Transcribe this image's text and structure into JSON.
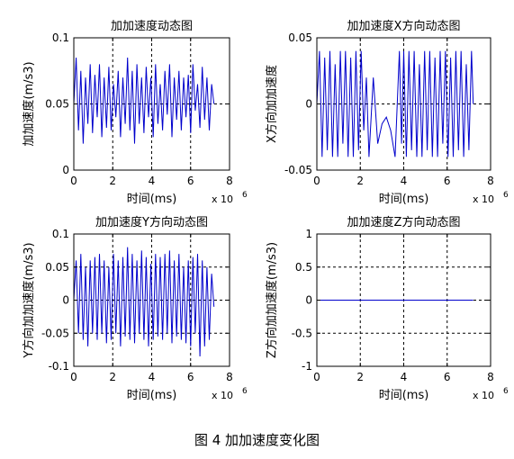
{
  "figure_caption": "图 4  加加速度变化图",
  "chart_data": [
    {
      "type": "line",
      "title": "加加速度动态图",
      "xlabel": "时间(ms)",
      "ylabel": "加加速度(m/s3)",
      "x_exponent": "x 10",
      "x_exponent_power": "6",
      "xlim": [
        0,
        8
      ],
      "ylim": [
        0,
        0.1
      ],
      "xticks": [
        0,
        2,
        4,
        6,
        8
      ],
      "yticks": [
        0,
        0.05,
        0.1
      ],
      "ytick_labels": [
        "0",
        "0.05",
        "0.1"
      ],
      "grid": true,
      "line_color": "#0000cc",
      "x": [
        0,
        0.12,
        0.24,
        0.36,
        0.48,
        0.6,
        0.72,
        0.84,
        0.96,
        1.08,
        1.2,
        1.32,
        1.44,
        1.56,
        1.68,
        1.8,
        1.92,
        2.04,
        2.16,
        2.28,
        2.4,
        2.52,
        2.64,
        2.76,
        2.88,
        3.0,
        3.12,
        3.24,
        3.36,
        3.48,
        3.6,
        3.72,
        3.84,
        3.96,
        4.08,
        4.2,
        4.32,
        4.44,
        4.56,
        4.68,
        4.8,
        4.92,
        5.04,
        5.16,
        5.28,
        5.4,
        5.52,
        5.64,
        5.76,
        5.88,
        6.0,
        6.12,
        6.24,
        6.36,
        6.48,
        6.6,
        6.72,
        6.84,
        6.96,
        7.08,
        7.2
      ],
      "y": [
        0.05,
        0.085,
        0.03,
        0.075,
        0.02,
        0.07,
        0.035,
        0.08,
        0.028,
        0.072,
        0.04,
        0.08,
        0.025,
        0.07,
        0.032,
        0.078,
        0.03,
        0.065,
        0.04,
        0.075,
        0.025,
        0.07,
        0.035,
        0.085,
        0.03,
        0.075,
        0.02,
        0.08,
        0.035,
        0.07,
        0.028,
        0.078,
        0.04,
        0.07,
        0.025,
        0.08,
        0.035,
        0.065,
        0.03,
        0.075,
        0.042,
        0.08,
        0.025,
        0.07,
        0.038,
        0.075,
        0.03,
        0.07,
        0.04,
        0.072,
        0.028,
        0.08,
        0.045,
        0.065,
        0.032,
        0.078,
        0.038,
        0.07,
        0.03,
        0.065,
        0.05
      ]
    },
    {
      "type": "line",
      "title": "加加速度X方向动态图",
      "xlabel": "时间(ms)",
      "ylabel": "X方向加加速度",
      "x_exponent": "x 10",
      "x_exponent_power": "6",
      "xlim": [
        0,
        8
      ],
      "ylim": [
        -0.05,
        0.05
      ],
      "xticks": [
        0,
        2,
        4,
        6,
        8
      ],
      "yticks": [
        -0.05,
        0,
        0.05
      ],
      "ytick_labels": [
        "-0.05",
        "0",
        "0.05"
      ],
      "grid": true,
      "line_color": "#0000cc",
      "x": [
        0,
        0.12,
        0.24,
        0.36,
        0.48,
        0.6,
        0.72,
        0.84,
        0.96,
        1.08,
        1.2,
        1.32,
        1.44,
        1.56,
        1.68,
        1.8,
        1.92,
        2.04,
        2.16,
        2.28,
        2.4,
        2.6,
        2.8,
        3.0,
        3.2,
        3.4,
        3.6,
        3.8,
        3.9,
        4.0,
        4.12,
        4.24,
        4.36,
        4.48,
        4.6,
        4.72,
        4.84,
        4.96,
        5.08,
        5.2,
        5.32,
        5.44,
        5.56,
        5.68,
        5.8,
        5.92,
        6.04,
        6.16,
        6.28,
        6.4,
        6.52,
        6.64,
        6.76,
        6.88,
        7.0,
        7.12,
        7.2
      ],
      "y": [
        0,
        0.04,
        -0.04,
        0.035,
        -0.035,
        0.04,
        -0.04,
        0.03,
        -0.04,
        0.04,
        -0.03,
        0.04,
        -0.04,
        0.035,
        -0.04,
        0.04,
        -0.035,
        0.04,
        -0.02,
        0.02,
        -0.04,
        0.02,
        -0.03,
        -0.015,
        -0.01,
        -0.02,
        -0.04,
        0.04,
        -0.03,
        0.04,
        -0.04,
        0.04,
        -0.035,
        0.04,
        -0.04,
        0.03,
        -0.04,
        0.04,
        -0.035,
        0.04,
        -0.04,
        0.035,
        -0.04,
        0.04,
        -0.03,
        0.04,
        -0.04,
        0.035,
        -0.04,
        0.04,
        -0.035,
        0.04,
        -0.04,
        0.03,
        -0.035,
        0.04,
        0
      ]
    },
    {
      "type": "line",
      "title": "加加速度Y方向动态图",
      "xlabel": "时间(ms)",
      "ylabel": "Y方向加加速度(m/s3)",
      "x_exponent": "x 10",
      "x_exponent_power": "6",
      "xlim": [
        0,
        8
      ],
      "ylim": [
        -0.1,
        0.1
      ],
      "xticks": [
        0,
        2,
        4,
        6,
        8
      ],
      "yticks": [
        -0.1,
        -0.05,
        0,
        0.05,
        0.1
      ],
      "ytick_labels": [
        "-0.1",
        "-0.05",
        "0",
        "0.05",
        "0.1"
      ],
      "grid": true,
      "line_color": "#0000cc",
      "x": [
        0,
        0.12,
        0.24,
        0.36,
        0.48,
        0.6,
        0.72,
        0.84,
        0.96,
        1.08,
        1.2,
        1.32,
        1.44,
        1.56,
        1.68,
        1.8,
        1.92,
        2.04,
        2.16,
        2.28,
        2.4,
        2.52,
        2.64,
        2.76,
        2.88,
        3.0,
        3.12,
        3.24,
        3.36,
        3.48,
        3.6,
        3.72,
        3.84,
        3.96,
        4.08,
        4.2,
        4.32,
        4.44,
        4.56,
        4.68,
        4.8,
        4.92,
        5.04,
        5.16,
        5.28,
        5.4,
        5.52,
        5.64,
        5.76,
        5.88,
        6.0,
        6.12,
        6.24,
        6.36,
        6.48,
        6.6,
        6.72,
        6.84,
        6.96,
        7.08,
        7.2
      ],
      "y": [
        0,
        0.06,
        -0.05,
        0.07,
        -0.06,
        0.05,
        -0.07,
        0.06,
        -0.05,
        0.065,
        -0.06,
        0.07,
        -0.05,
        0.06,
        -0.065,
        0.05,
        -0.06,
        0.07,
        -0.05,
        0.06,
        -0.07,
        0.065,
        -0.055,
        0.08,
        -0.06,
        0.07,
        -0.065,
        0.06,
        -0.05,
        0.075,
        -0.06,
        0.065,
        -0.07,
        0.055,
        -0.06,
        0.07,
        -0.055,
        0.065,
        -0.06,
        0.07,
        -0.05,
        0.075,
        -0.065,
        0.06,
        -0.055,
        0.07,
        -0.06,
        0.05,
        -0.065,
        0.06,
        -0.07,
        0.065,
        -0.05,
        0.07,
        -0.085,
        0.06,
        -0.07,
        0.05,
        -0.06,
        0.04,
        -0.01
      ]
    },
    {
      "type": "line",
      "title": "加加速度Z方向动态图",
      "xlabel": "时间(ms)",
      "ylabel": "Z方向加加速度(m/s3)",
      "x_exponent": "x 10",
      "x_exponent_power": "6",
      "xlim": [
        0,
        8
      ],
      "ylim": [
        -1,
        1
      ],
      "xticks": [
        0,
        2,
        4,
        6,
        8
      ],
      "yticks": [
        -1,
        -0.5,
        0,
        0.5,
        1
      ],
      "ytick_labels": [
        "-1",
        "-0.5",
        "0",
        "0.5",
        "1"
      ],
      "grid": true,
      "line_color": "#0000cc",
      "x": [
        0,
        7.2
      ],
      "y": [
        0,
        0
      ]
    }
  ]
}
